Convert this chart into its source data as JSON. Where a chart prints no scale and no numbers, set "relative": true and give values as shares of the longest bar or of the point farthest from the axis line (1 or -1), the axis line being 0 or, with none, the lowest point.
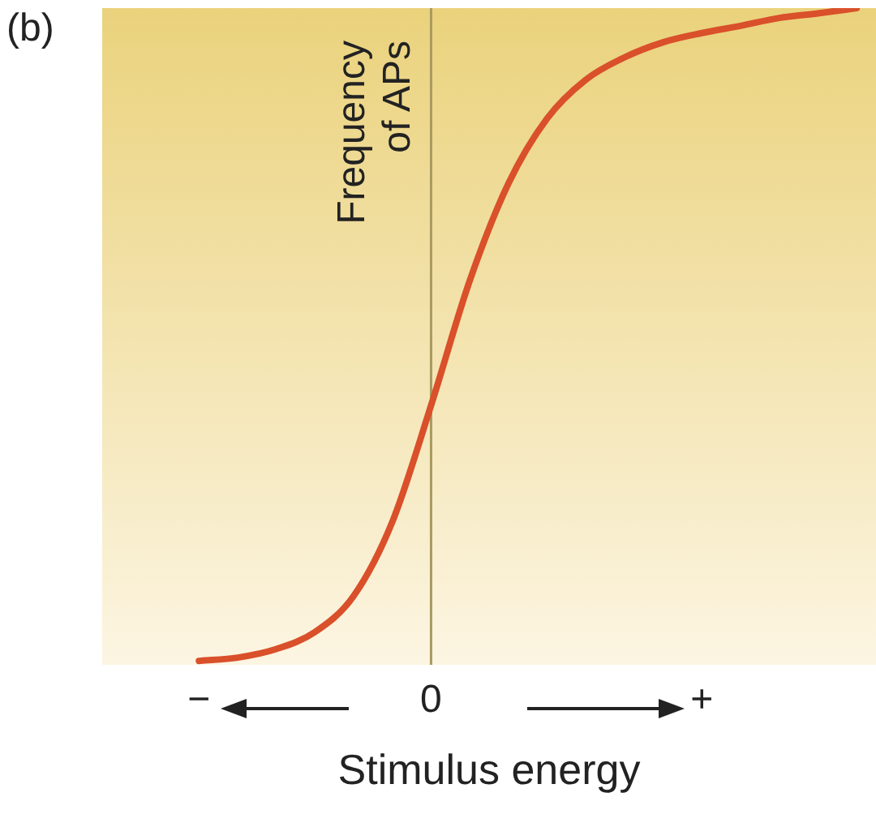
{
  "chart_data": {
    "type": "line",
    "relative": true,
    "xlabel": "Stimulus energy",
    "ylabel": "Frequency of APs",
    "annotations": [
      "(b)"
    ],
    "categories": [
      null,
      null,
      "−",
      null,
      null,
      null,
      null,
      null,
      "0",
      null,
      null,
      null,
      null,
      null,
      null,
      "+",
      null,
      null,
      null,
      null
    ],
    "series": [
      {
        "color": "#d9502a",
        "values": [
          null,
          null,
          0.006,
          0.011,
          0.024,
          0.05,
          0.105,
          0.218,
          0.395,
          0.585,
          0.733,
          0.832,
          0.891,
          0.925,
          0.948,
          0.962,
          0.973,
          0.985,
          0.992,
          1.0
        ]
      }
    ],
    "ref_lines": [
      {
        "axis": "x",
        "value": "0",
        "color": "#a89a60"
      }
    ],
    "grid": false,
    "legend": false,
    "marker": "none",
    "line_style": "solid"
  }
}
